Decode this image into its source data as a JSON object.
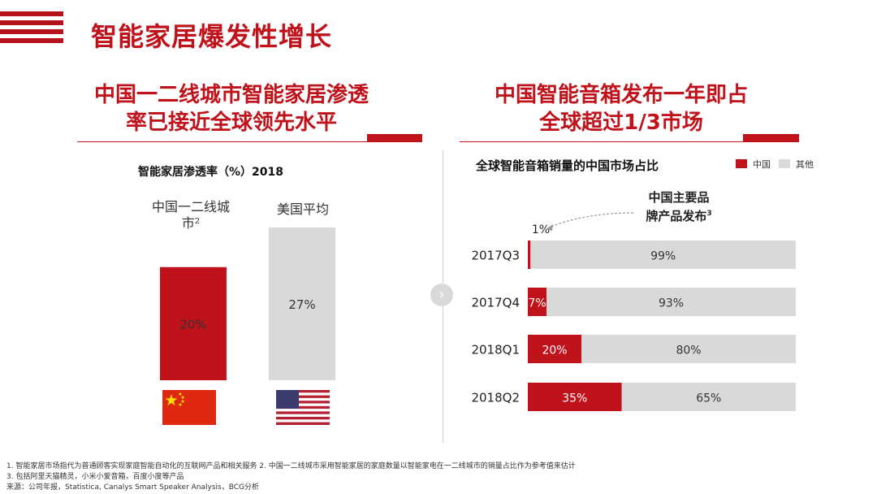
{
  "page": {
    "title": "智能家居爆发性增长"
  },
  "left_panel": {
    "heading_line1": "中国一二线城市智能家居渗透",
    "heading_line2": "率已接近全球领先水平"
  },
  "right_panel": {
    "heading_line1": "中国智能音箱发布一年即占",
    "heading_line2": "全球超过1/3市场"
  },
  "callout": {
    "line1": "中国主要品",
    "line2": "牌产品发布",
    "superscript": "3"
  },
  "legend": {
    "china": "中国",
    "other": "其他"
  },
  "colors": {
    "accent": "#c0121b",
    "gray": "#d9d9d9"
  },
  "chart_data": [
    {
      "type": "bar",
      "title": "智能家居渗透率（%）2018",
      "categories": [
        "中国一二线城市²",
        "美国平均"
      ],
      "values": [
        20,
        27
      ],
      "value_labels": [
        "20%",
        "27%"
      ],
      "colors": [
        "#c0121b",
        "#d9d9d9"
      ],
      "flags": [
        "china-flag",
        "usa-flag"
      ]
    },
    {
      "type": "bar",
      "orientation": "horizontal-stacked",
      "title": "全球智能音箱销量的中国市场占比",
      "categories": [
        "2017Q3",
        "2017Q4",
        "2018Q1",
        "2018Q2"
      ],
      "series": [
        {
          "name": "中国",
          "values": [
            1,
            7,
            20,
            35
          ],
          "labels": [
            "1%",
            "7%",
            "20%",
            "35%"
          ],
          "color": "#c0121b"
        },
        {
          "name": "其他",
          "values": [
            99,
            93,
            80,
            65
          ],
          "labels": [
            "99%",
            "93%",
            "80%",
            "65%"
          ],
          "color": "#d9d9d9"
        }
      ]
    }
  ],
  "footnotes": {
    "line1": "1. 智能家居市场指代为普通顾客实现家庭智能自动化的互联网产品和相关服务    2. 中国一二线城市采用智能家居的家庭数量以智能家电在一二线城市的销量占比作为参考值来估计",
    "line2": "3. 包括阿里天猫精灵，小米小爱音箱，百度小度等产品",
    "line3": "来源：公司年报，Statistica, Canalys Smart Speaker Analysis，BCG分析"
  }
}
